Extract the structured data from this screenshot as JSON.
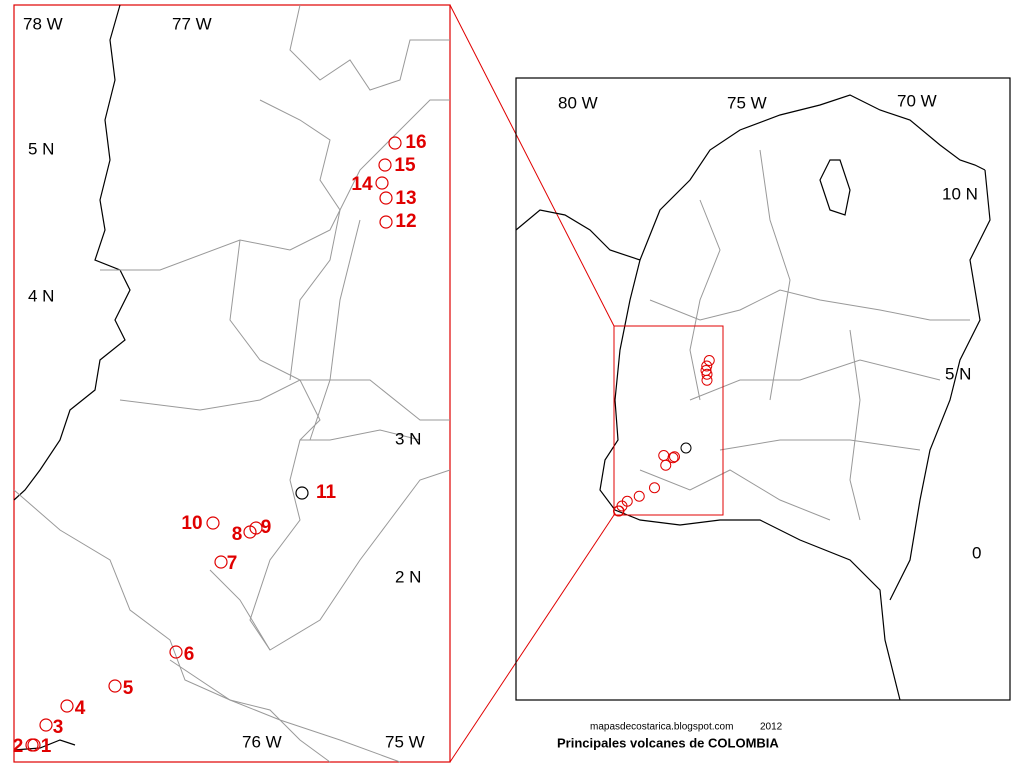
{
  "inset_labels": [
    "78 W",
    "77 W",
    "5 N",
    "4 N",
    "3 N",
    "2 N",
    "76 W",
    "75 W"
  ],
  "overview_labels": [
    "80 W",
    "75 W",
    "70 W",
    "10 N",
    "5 N",
    "0"
  ],
  "volcanoes": [
    {
      "label": "1",
      "color": "#e00000"
    },
    {
      "label": "2",
      "color": "#e00000"
    },
    {
      "label": "3",
      "color": "#e00000"
    },
    {
      "label": "4",
      "color": "#e00000"
    },
    {
      "label": "5",
      "color": "#e00000"
    },
    {
      "label": "6",
      "color": "#e00000"
    },
    {
      "label": "7",
      "color": "#e00000"
    },
    {
      "label": "8",
      "color": "#e00000"
    },
    {
      "label": "9",
      "color": "#e00000"
    },
    {
      "label": "10",
      "color": "#e00000"
    },
    {
      "label": "11",
      "color": "#000000"
    },
    {
      "label": "12",
      "color": "#e00000"
    },
    {
      "label": "13",
      "color": "#e00000"
    },
    {
      "label": "14",
      "color": "#e00000"
    },
    {
      "label": "15",
      "color": "#e00000"
    },
    {
      "label": "16",
      "color": "#e00000"
    }
  ],
  "credit": {
    "site": "mapasdecostarica.blogspot.com",
    "year": "2012"
  },
  "title": "Principales volcanes de COLOMBIA"
}
